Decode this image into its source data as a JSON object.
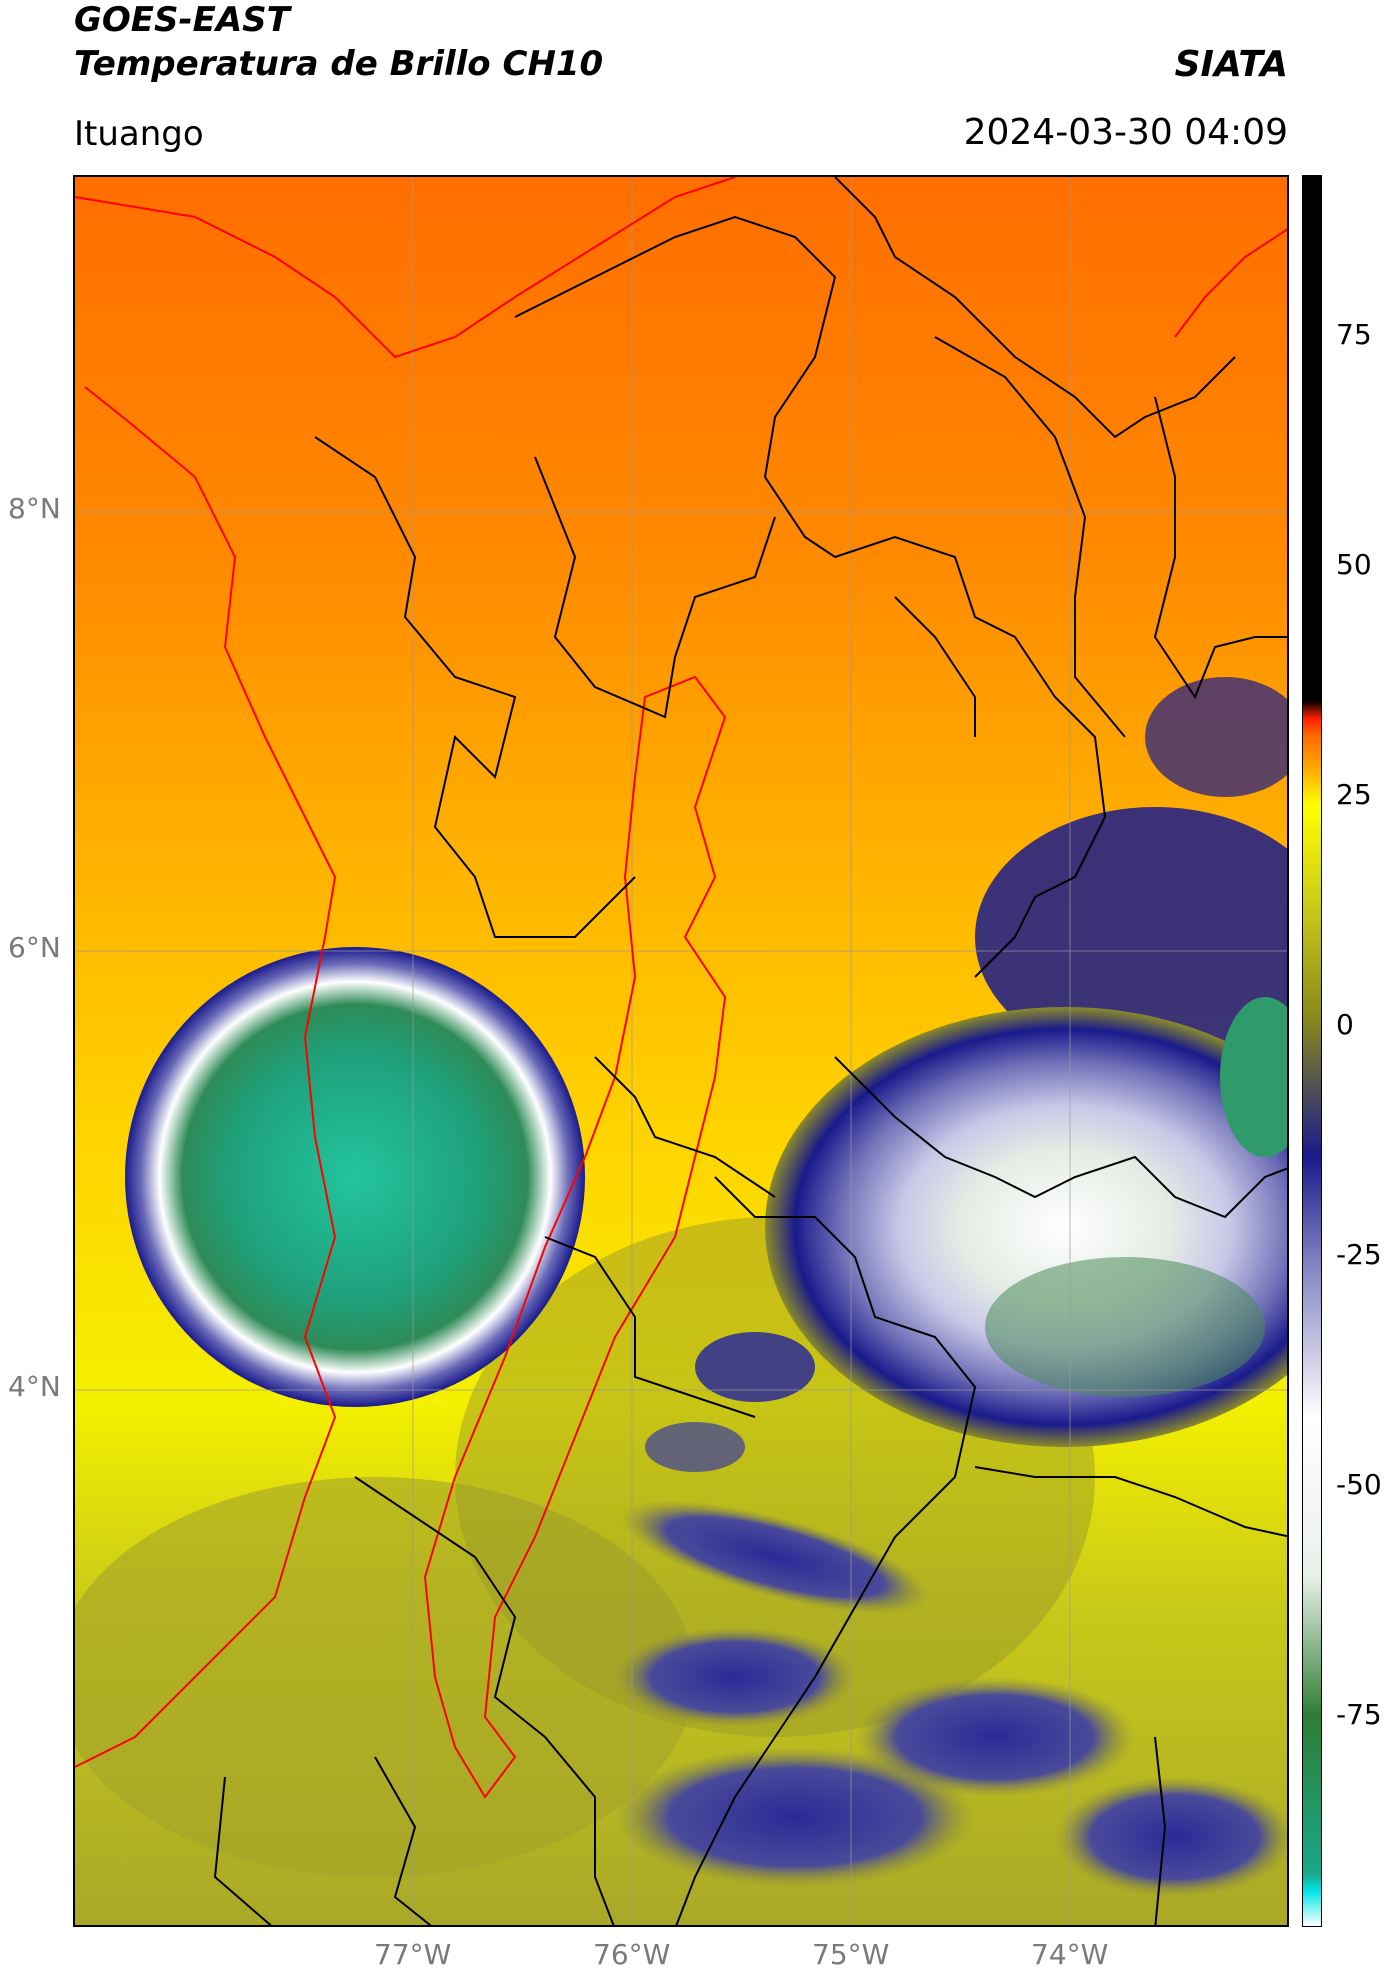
{
  "header": {
    "title_line1": "GOES-EAST",
    "title_line2": "Temperatura de Brillo CH10",
    "organization": "SIATA",
    "location": "Ituango",
    "timestamp": "2024-03-30 04:09"
  },
  "map": {
    "lat_labels": [
      "8°N",
      "6°N",
      "4°N"
    ],
    "lon_labels": [
      "77°W",
      "76°W",
      "75°W",
      "74°W"
    ],
    "boundary_colors": {
      "admin": "#000000",
      "highlight": "#ff0000"
    }
  },
  "colorbar": {
    "tick_labels": [
      "75",
      "50",
      "25",
      "0",
      "-25",
      "-50",
      "-75"
    ],
    "colors": [
      "#ffffff",
      "#00e6e6",
      "#1aa88a",
      "#2e7d32",
      "#e8f0e8",
      "#ffffff",
      "#8080c0",
      "#1a1a8c",
      "#8a8a1a",
      "#c8c81a",
      "#ffff00",
      "#ffb000",
      "#ff6a00",
      "#ff2000",
      "#000000"
    ]
  }
}
